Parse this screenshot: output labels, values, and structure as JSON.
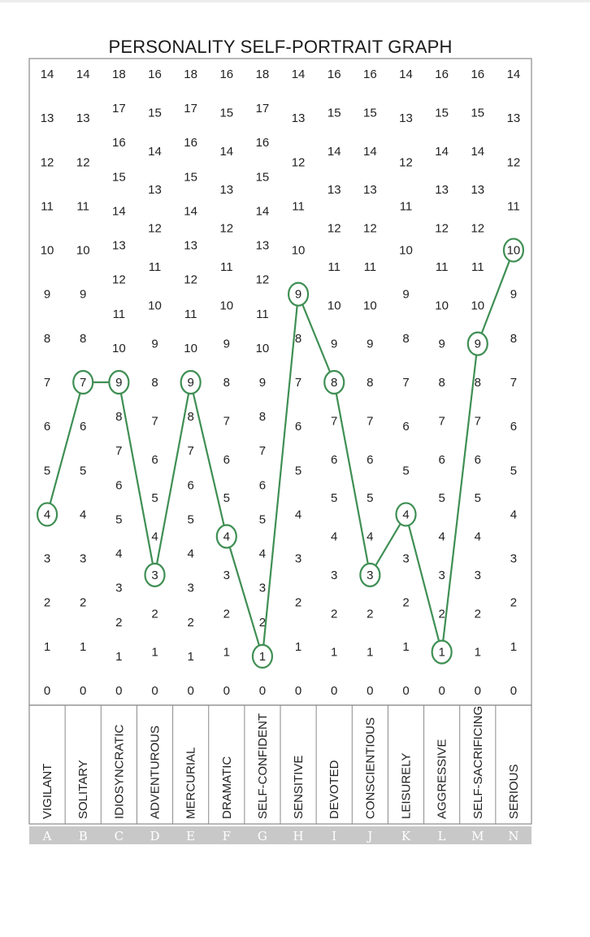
{
  "chart_data": {
    "type": "line",
    "title": "PERSONALITY SELF-PORTRAIT GRAPH",
    "categories": [
      "VIGILANT",
      "SOLITARY",
      "IDIOSYNCRATIC",
      "ADVENTUROUS",
      "MERCURIAL",
      "DRAMATIC",
      "SELF-CONFIDENT",
      "SENSITIVE",
      "DEVOTED",
      "CONSCIENTIOUS",
      "LEISURELY",
      "AGGRESSIVE",
      "SELF-SACRIFICING",
      "SERIOUS"
    ],
    "letters": [
      "A",
      "B",
      "C",
      "D",
      "E",
      "F",
      "G",
      "H",
      "I",
      "J",
      "K",
      "L",
      "M",
      "N"
    ],
    "scale_max": [
      14,
      14,
      18,
      16,
      18,
      16,
      18,
      14,
      16,
      16,
      14,
      16,
      16,
      14
    ],
    "scale_min": 0,
    "values": [
      4,
      7,
      9,
      3,
      9,
      4,
      1,
      9,
      8,
      3,
      4,
      1,
      9,
      10
    ],
    "grid": false,
    "colors": {
      "line": "#3f8f54",
      "frame": "#8a8a8a",
      "letter_band": "#c8c8c8"
    }
  }
}
